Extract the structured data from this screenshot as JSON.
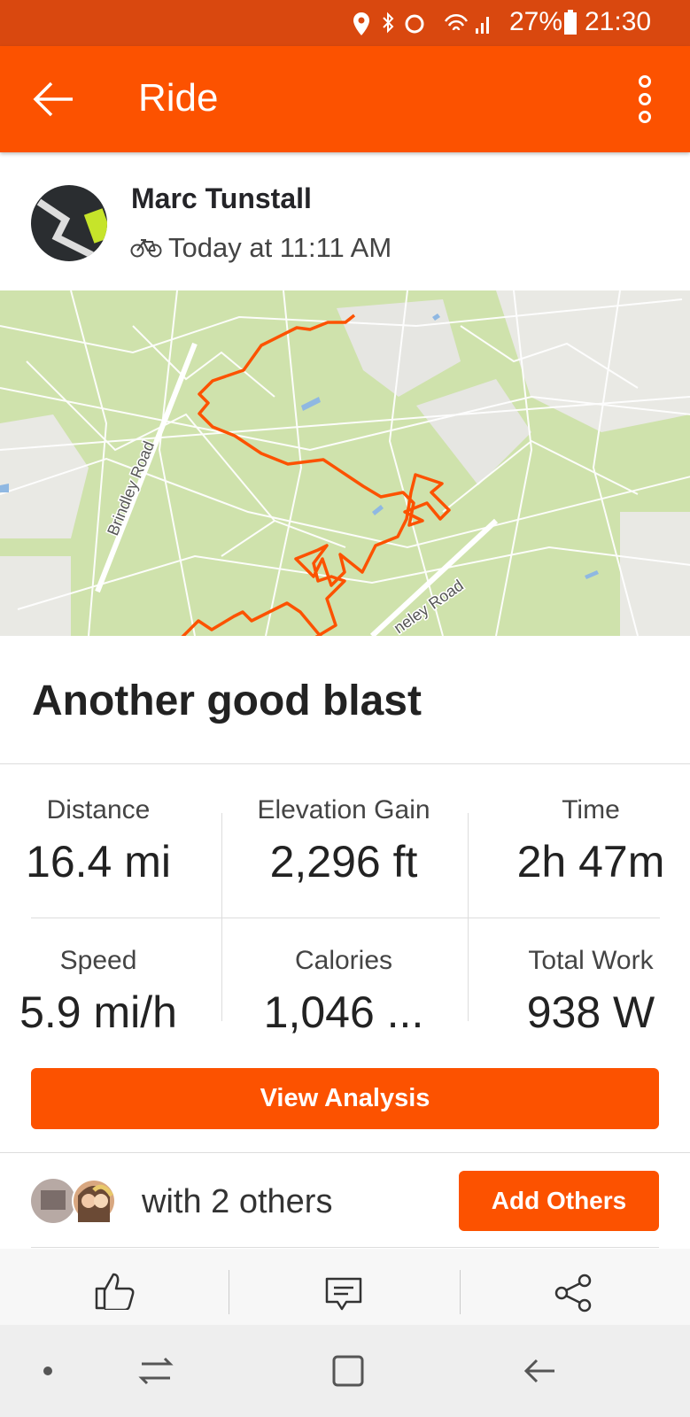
{
  "status_bar": {
    "battery": "27%",
    "time": "21:30"
  },
  "header": {
    "title": "Ride"
  },
  "activity": {
    "athlete": "Marc Tunstall",
    "date": "Today at 11:11 AM",
    "map_labels": [
      "Brindley Road",
      "neley Road"
    ],
    "title": "Another good blast",
    "stats": [
      {
        "label": "Distance",
        "value": "16.4 mi"
      },
      {
        "label": "Elevation Gain",
        "value": "2,296 ft"
      },
      {
        "label": "Time",
        "value": "2h 47m"
      },
      {
        "label": "Speed",
        "value": "5.9 mi/h"
      },
      {
        "label": "Calories",
        "value": "1,046 ..."
      },
      {
        "label": "Total Work",
        "value": "938 W"
      }
    ],
    "view_button": "View Analysis",
    "group": "with 2 others",
    "add_button": "Add Others"
  }
}
